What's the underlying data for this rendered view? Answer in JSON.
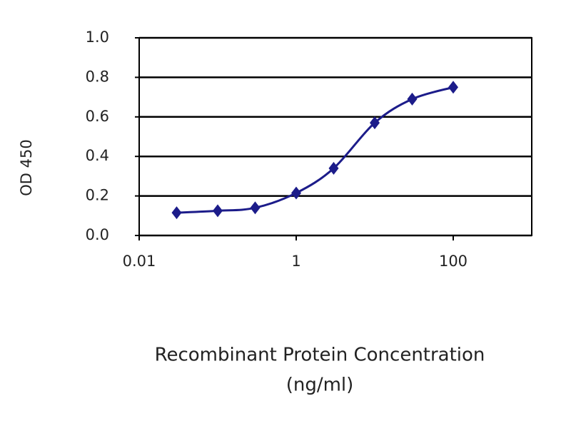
{
  "chart_data": {
    "type": "line",
    "ylabel": "OD 450",
    "xlabel": [
      "Recombinant Protein Concentration",
      "(ng/ml)"
    ],
    "xscale": "log",
    "xlim": [
      0.01,
      1000
    ],
    "xticks": [
      0.01,
      1,
      100
    ],
    "ylim": [
      0,
      1
    ],
    "yticks": [
      {
        "value": 0,
        "label": "0.0"
      },
      0.2,
      0.4,
      0.6,
      0.8,
      {
        "value": 1,
        "label": "1.0"
      }
    ],
    "grid": true,
    "series": [
      {
        "color": "#1c1c8a",
        "x": [
          0.03,
          0.1,
          0.3,
          1,
          3,
          10,
          30,
          100
        ],
        "values": [
          0.115,
          0.125,
          0.14,
          0.215,
          0.34,
          0.57,
          0.69,
          0.75
        ]
      }
    ]
  }
}
